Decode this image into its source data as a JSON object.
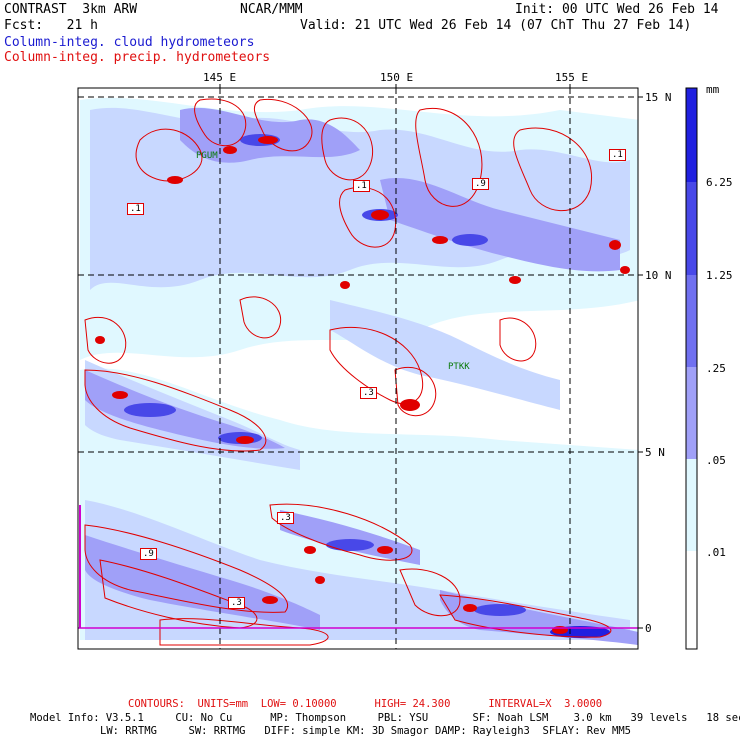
{
  "header": {
    "left1": "CONTRAST  3km ARW",
    "center1": "NCAR/MMM",
    "right1": "Init: 00 UTC Wed 26 Feb 14",
    "left2": "Fcst:   21 h",
    "right2": "Valid: 21 UTC Wed 26 Feb 14 (07 ChT Thu 27 Feb 14)",
    "field1": "Column-integ. cloud hydrometeors",
    "field2": "Column-integ. precip. hydrometeors"
  },
  "map": {
    "lon_labels": [
      "145 E",
      "150 E",
      "155 E"
    ],
    "lat_labels": [
      "15 N",
      "10 N",
      "5 N",
      "0"
    ],
    "stations": [
      "PGUM",
      "PTKK"
    ]
  },
  "colorbar": {
    "unit": "mm",
    "labels": [
      "6.25",
      "1.25",
      ".25",
      ".05",
      ".01"
    ],
    "colors": [
      "#2020e0",
      "#4848e8",
      "#7070f0",
      "#a0a0f8",
      "#c8d8ff",
      "#e0f8ff",
      "#ffffff"
    ]
  },
  "contour_labels": [
    ".1",
    ".9",
    ".3"
  ],
  "footer": {
    "contours": "CONTOURS:  UNITS=mm  LOW= 0.10000      HIGH= 24.300      INTERVAL=X  3.0000",
    "model1": "Model Info: V3.5.1     CU: No Cu      MP: Thompson     PBL: YSU       SF: Noah LSM    3.0 km   39 levels   18 sec",
    "model2": "LW: RRTMG     SW: RRTMG   DIFF: simple KM: 3D Smagor DAMP: Rayleigh3  SFLAY: Rev MM5"
  },
  "colors": {
    "precip_contour": "#e00000",
    "cloud_fill": "#8890f0",
    "accent_magenta": "#d000d0"
  }
}
